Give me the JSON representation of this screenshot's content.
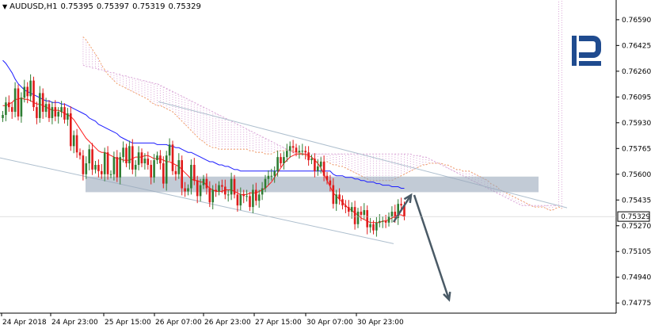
{
  "header": {
    "symbol": "AUDUSD,H1",
    "open": "0.75395",
    "high": "0.75397",
    "low": "0.75319",
    "close": "0.75329"
  },
  "colors": {
    "up_candle": "#2e7d32",
    "down_candle": "#e01b1b",
    "kijun": "#1d1dff",
    "tenkan": "#ff1a1a",
    "cloud": "#f2a26a",
    "cloud_fill": "#d9a3d6",
    "channel": "#aebfce",
    "zone": "#9aa9bb",
    "arrow": "#4a5a66",
    "logo": "#1f4b8f"
  },
  "chart_data": {
    "type": "candlestick",
    "ylim": [
      0.7471,
      0.7663
    ],
    "y_ticks": [
      "0.76590",
      "0.76425",
      "0.76260",
      "0.76095",
      "0.75930",
      "0.75765",
      "0.75600",
      "0.75435",
      "0.75270",
      "0.75105",
      "0.74940",
      "0.74775"
    ],
    "current_price": "0.75329",
    "x_ticks": [
      "24 Apr 2018",
      "24 Apr 23:00",
      "25 Apr 15:00",
      "26 Apr 07:00",
      "26 Apr 23:00",
      "27 Apr 15:00",
      "30 Apr 07:00",
      "30 Apr 23:00"
    ],
    "close": [
      0.7598,
      0.7606,
      0.7603,
      0.76,
      0.7615,
      0.7597,
      0.7609,
      0.7616,
      0.761,
      0.762,
      0.7603,
      0.7596,
      0.7612,
      0.76,
      0.7605,
      0.7596,
      0.7603,
      0.7597,
      0.76,
      0.7603,
      0.7595,
      0.7599,
      0.7578,
      0.7585,
      0.7574,
      0.7572,
      0.756,
      0.7567,
      0.7576,
      0.7563,
      0.7566,
      0.7562,
      0.756,
      0.7574,
      0.756,
      0.756,
      0.7571,
      0.7558,
      0.7571,
      0.7577,
      0.7567,
      0.7578,
      0.7563,
      0.7566,
      0.7574,
      0.7567,
      0.757,
      0.7566,
      0.7558,
      0.7569,
      0.7572,
      0.7567,
      0.7554,
      0.7572,
      0.7579,
      0.7562,
      0.756,
      0.7569,
      0.7551,
      0.7549,
      0.7551,
      0.7566,
      0.7556,
      0.7546,
      0.7553,
      0.7557,
      0.7551,
      0.7542,
      0.755,
      0.7549,
      0.7553,
      0.7552,
      0.7547,
      0.7547,
      0.7557,
      0.7547,
      0.754,
      0.7547,
      0.7546,
      0.7546,
      0.7539,
      0.755,
      0.7543,
      0.7547,
      0.7551,
      0.7557,
      0.7559,
      0.7559,
      0.7562,
      0.7571,
      0.7567,
      0.7571,
      0.7575,
      0.7578,
      0.7577,
      0.7574,
      0.7575,
      0.7575,
      0.7574,
      0.7569,
      0.757,
      0.7562,
      0.7565,
      0.7568,
      0.7559,
      0.7556,
      0.7553,
      0.7541,
      0.7547,
      0.7544,
      0.754,
      0.7539,
      0.7536,
      0.7539,
      0.7528,
      0.7536,
      0.7534,
      0.7537,
      0.7526,
      0.7528,
      0.7524,
      0.7529,
      0.753,
      0.753,
      0.7529,
      0.7533,
      0.7536,
      0.7532,
      0.7541,
      0.754,
      0.7533
    ],
    "tenkan": [
      0.7604,
      0.7604,
      0.7605,
      0.7606,
      0.7608,
      0.7608,
      0.7609,
      0.7608,
      0.7608,
      0.7607,
      0.7606,
      0.7605,
      0.7605,
      0.7604,
      0.7603,
      0.7602,
      0.7601,
      0.7601,
      0.7601,
      0.76,
      0.7599,
      0.7598,
      0.7597,
      0.7595,
      0.7592,
      0.7589,
      0.7586,
      0.7583,
      0.7581,
      0.7579,
      0.7577,
      0.7575,
      0.7574,
      0.7574,
      0.7573,
      0.7572,
      0.7571,
      0.757,
      0.757,
      0.7569,
      0.7569,
      0.7569,
      0.757,
      0.7571,
      0.7571,
      0.7571,
      0.7572,
      0.7572,
      0.7571,
      0.757,
      0.757,
      0.757,
      0.7569,
      0.7568,
      0.7568,
      0.7567,
      0.7566,
      0.7565,
      0.7563,
      0.7561,
      0.7559,
      0.7557,
      0.7556,
      0.7556,
      0.7555,
      0.7555,
      0.7553,
      0.7551,
      0.755,
      0.7549,
      0.7549,
      0.7549,
      0.755,
      0.755,
      0.755,
      0.7549,
      0.7548,
      0.7547,
      0.7547,
      0.7547,
      0.7548,
      0.7548,
      0.7548,
      0.7549,
      0.755,
      0.7551,
      0.7553,
      0.7555,
      0.7558,
      0.7561,
      0.7564,
      0.7567,
      0.7569,
      0.7571,
      0.7572,
      0.7573,
      0.7573,
      0.7573,
      0.7573,
      0.7572,
      0.7571,
      0.7569,
      0.7567,
      0.7564,
      0.756,
      0.7556,
      0.7552,
      0.7548,
      0.7546,
      0.7544,
      0.7542,
      0.754,
      0.7538,
      0.7537,
      0.7535,
      0.7534,
      0.7532,
      0.7531,
      0.753,
      0.7529,
      0.7529,
      0.7529,
      0.7529,
      0.753,
      0.753,
      0.7531,
      0.7532,
      0.7533,
      0.7534,
      0.7534,
      0.7533
    ],
    "kijun": [
      0.7633,
      0.7631,
      0.7628,
      0.7625,
      0.7621,
      0.7618,
      0.7616,
      0.7614,
      0.7613,
      0.7612,
      0.7611,
      0.761,
      0.7609,
      0.7608,
      0.7607,
      0.7607,
      0.7606,
      0.7606,
      0.7606,
      0.7605,
      0.7605,
      0.7604,
      0.7603,
      0.7602,
      0.7601,
      0.76,
      0.7599,
      0.7598,
      0.7596,
      0.7595,
      0.7594,
      0.7592,
      0.7591,
      0.759,
      0.7589,
      0.7588,
      0.7587,
      0.7586,
      0.7584,
      0.7583,
      0.7582,
      0.7581,
      0.758,
      0.758,
      0.758,
      0.758,
      0.758,
      0.758,
      0.758,
      0.758,
      0.7579,
      0.7579,
      0.7579,
      0.7579,
      0.7578,
      0.7578,
      0.7577,
      0.7577,
      0.7576,
      0.7575,
      0.7574,
      0.7574,
      0.7573,
      0.7572,
      0.7571,
      0.757,
      0.7569,
      0.7568,
      0.7568,
      0.7567,
      0.7566,
      0.7566,
      0.7565,
      0.7565,
      0.7564,
      0.7563,
      0.7563,
      0.7562,
      0.7562,
      0.7562,
      0.7562,
      0.7562,
      0.7562,
      0.7562,
      0.7562,
      0.7562,
      0.7562,
      0.7562,
      0.7562,
      0.7562,
      0.7562,
      0.7562,
      0.7562,
      0.7562,
      0.7562,
      0.7562,
      0.7562,
      0.7562,
      0.7562,
      0.7562,
      0.7562,
      0.7562,
      0.7562,
      0.7562,
      0.7562,
      0.7562,
      0.7562,
      0.756,
      0.7559,
      0.7559,
      0.7559,
      0.7558,
      0.7558,
      0.7558,
      0.7557,
      0.7557,
      0.7556,
      0.7556,
      0.7555,
      0.7555,
      0.7555,
      0.7554,
      0.7554,
      0.7553,
      0.7553,
      0.7553,
      0.7552,
      0.7552,
      0.7552,
      0.7551,
      0.7551
    ],
    "span_a": [
      0.7648,
      0.7646,
      0.7643,
      0.764,
      0.7637,
      0.7634,
      0.763,
      0.7627,
      0.7624,
      0.7622,
      0.762,
      0.7618,
      0.7617,
      0.7616,
      0.7615,
      0.7614,
      0.7613,
      0.7612,
      0.7611,
      0.761,
      0.7609,
      0.7608,
      0.7606,
      0.7605,
      0.7604,
      0.7604,
      0.7603,
      0.7602,
      0.7601,
      0.76,
      0.7598,
      0.7596,
      0.7594,
      0.7592,
      0.759,
      0.7588,
      0.7586,
      0.7584,
      0.7582,
      0.7581,
      0.7579,
      0.7578,
      0.7577,
      0.7577,
      0.7576,
      0.7576,
      0.7576,
      0.7576,
      0.7576,
      0.7576,
      0.7576,
      0.7576,
      0.7576,
      0.7576,
      0.7575,
      0.7575,
      0.7574,
      0.7574,
      0.7574,
      0.7573,
      0.7573,
      0.7573,
      0.7574,
      0.7575,
      0.7575,
      0.7575,
      0.7576,
      0.7575,
      0.7575,
      0.7574,
      0.7574,
      0.7573,
      0.7572,
      0.7571,
      0.757,
      0.7569,
      0.7568,
      0.7568,
      0.7568,
      0.7568,
      0.7567,
      0.7566,
      0.7566,
      0.7565,
      0.7565,
      0.7564,
      0.7563,
      0.7562,
      0.7561,
      0.756,
      0.7559,
      0.7558,
      0.7557,
      0.7556,
      0.7556,
      0.7556,
      0.7556,
      0.7556,
      0.7556,
      0.7556,
      0.7556,
      0.7557,
      0.7558,
      0.7559,
      0.756,
      0.7561,
      0.7562,
      0.7563,
      0.7564,
      0.7565,
      0.7566,
      0.7566,
      0.7567,
      0.7567,
      0.7567,
      0.7567,
      0.7567,
      0.7566,
      0.7566,
      0.7565,
      0.7564,
      0.7563,
      0.7563,
      0.7562,
      0.7562,
      0.7562,
      0.7561,
      0.756,
      0.7559,
      0.7558,
      0.7557,
      0.7556,
      0.7554,
      0.7553,
      0.7552,
      0.755,
      0.7549,
      0.7548,
      0.7547,
      0.7546,
      0.7545,
      0.7544,
      0.7543,
      0.7542,
      0.7541,
      0.754,
      0.7539,
      0.7539,
      0.7539,
      0.7539,
      0.7538,
      0.7537,
      0.7537,
      0.7538,
      0.7539,
      0.7538
    ],
    "span_b": [
      0.763,
      0.7629,
      0.7629,
      0.7628,
      0.7628,
      0.7627,
      0.7627,
      0.7626,
      0.7626,
      0.7625,
      0.7625,
      0.7624,
      0.7624,
      0.7623,
      0.7623,
      0.7622,
      0.7622,
      0.7621,
      0.7621,
      0.762,
      0.762,
      0.7619,
      0.7619,
      0.7618,
      0.7618,
      0.7617,
      0.7616,
      0.7615,
      0.7614,
      0.7613,
      0.7612,
      0.7611,
      0.761,
      0.7609,
      0.7608,
      0.7607,
      0.7606,
      0.7605,
      0.7604,
      0.7603,
      0.7602,
      0.7601,
      0.76,
      0.7599,
      0.7598,
      0.7597,
      0.7596,
      0.7595,
      0.7594,
      0.7593,
      0.7592,
      0.7591,
      0.759,
      0.7589,
      0.7588,
      0.7587,
      0.7586,
      0.7585,
      0.7584,
      0.7583,
      0.7582,
      0.7581,
      0.758,
      0.7579,
      0.7578,
      0.7577,
      0.7576,
      0.7575,
      0.7574,
      0.7573,
      0.7573,
      0.7573,
      0.7573,
      0.7573,
      0.7573,
      0.7573,
      0.7573,
      0.7573,
      0.7573,
      0.7573,
      0.7573,
      0.7573,
      0.7573,
      0.7573,
      0.7573,
      0.7573,
      0.7573,
      0.7573,
      0.7573,
      0.7573,
      0.7573,
      0.7573,
      0.7573,
      0.7573,
      0.7573,
      0.7573,
      0.7573,
      0.7573,
      0.7573,
      0.7573,
      0.7573,
      0.7573,
      0.7573,
      0.7573,
      0.7573,
      0.7573,
      0.7573,
      0.7572,
      0.7572,
      0.7572,
      0.7571,
      0.7571,
      0.757,
      0.7569,
      0.7568,
      0.7567,
      0.7566,
      0.7565,
      0.7564,
      0.7563,
      0.7562,
      0.7561,
      0.756,
      0.7559,
      0.7558,
      0.7557,
      0.7556,
      0.7555,
      0.7554,
      0.7553,
      0.7552,
      0.7551,
      0.755,
      0.7549,
      0.7548,
      0.7547,
      0.7546,
      0.7545,
      0.7544,
      0.7543,
      0.7542,
      0.7541,
      0.754,
      0.754,
      0.754,
      0.754,
      0.754,
      0.754,
      0.754,
      0.754,
      0.754,
      0.754,
      0.754,
      0.754
    ]
  }
}
